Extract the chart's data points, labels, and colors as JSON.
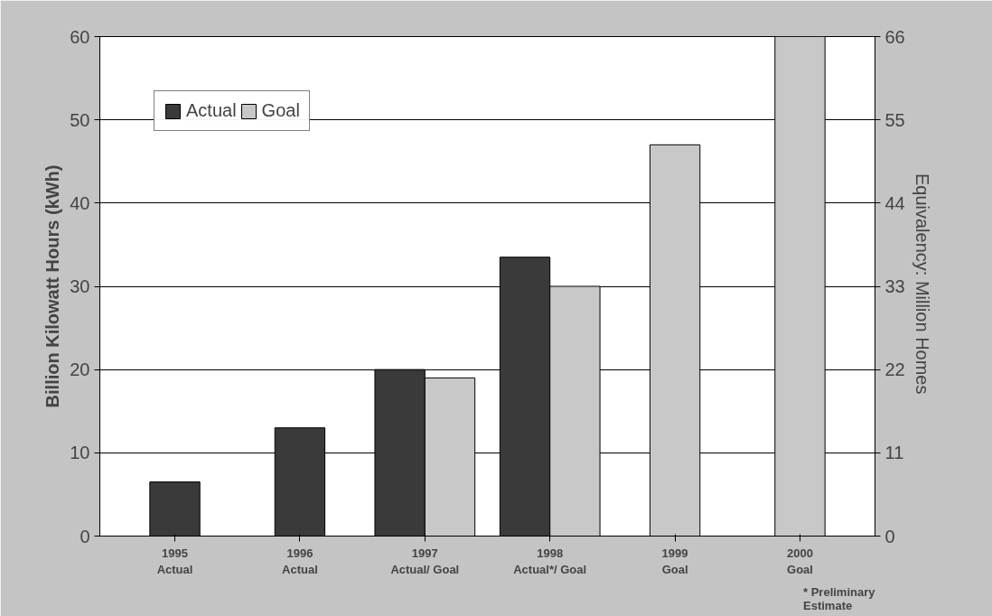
{
  "chart_data": {
    "type": "bar",
    "xlabel": null,
    "ylabel": "Billion Kilowatt Hours (kWh)",
    "y2label": "Equivalency:  Million Homes",
    "categories": [
      "1995\nActual",
      "1996\nActual",
      "1997\nActual/ Goal",
      "1998\nActual*/ Goal",
      "1999\nGoal",
      "2000\nGoal"
    ],
    "series": [
      {
        "name": "Actual",
        "color": "#3a3a3a",
        "values": [
          6.5,
          13,
          20,
          33.5,
          null,
          null
        ]
      },
      {
        "name": "Goal",
        "color": "#c8c8c8",
        "values": [
          null,
          null,
          19,
          30,
          47,
          60
        ]
      }
    ],
    "ylim": [
      0,
      60
    ],
    "yticks": [
      0,
      10,
      20,
      30,
      40,
      50,
      60
    ],
    "y2lim": [
      0,
      66
    ],
    "y2ticks": [
      0,
      11,
      22,
      33,
      44,
      55,
      66
    ],
    "grid": "y",
    "legend": "top left",
    "annotations": [
      "* Preliminary\nEstimate"
    ]
  }
}
